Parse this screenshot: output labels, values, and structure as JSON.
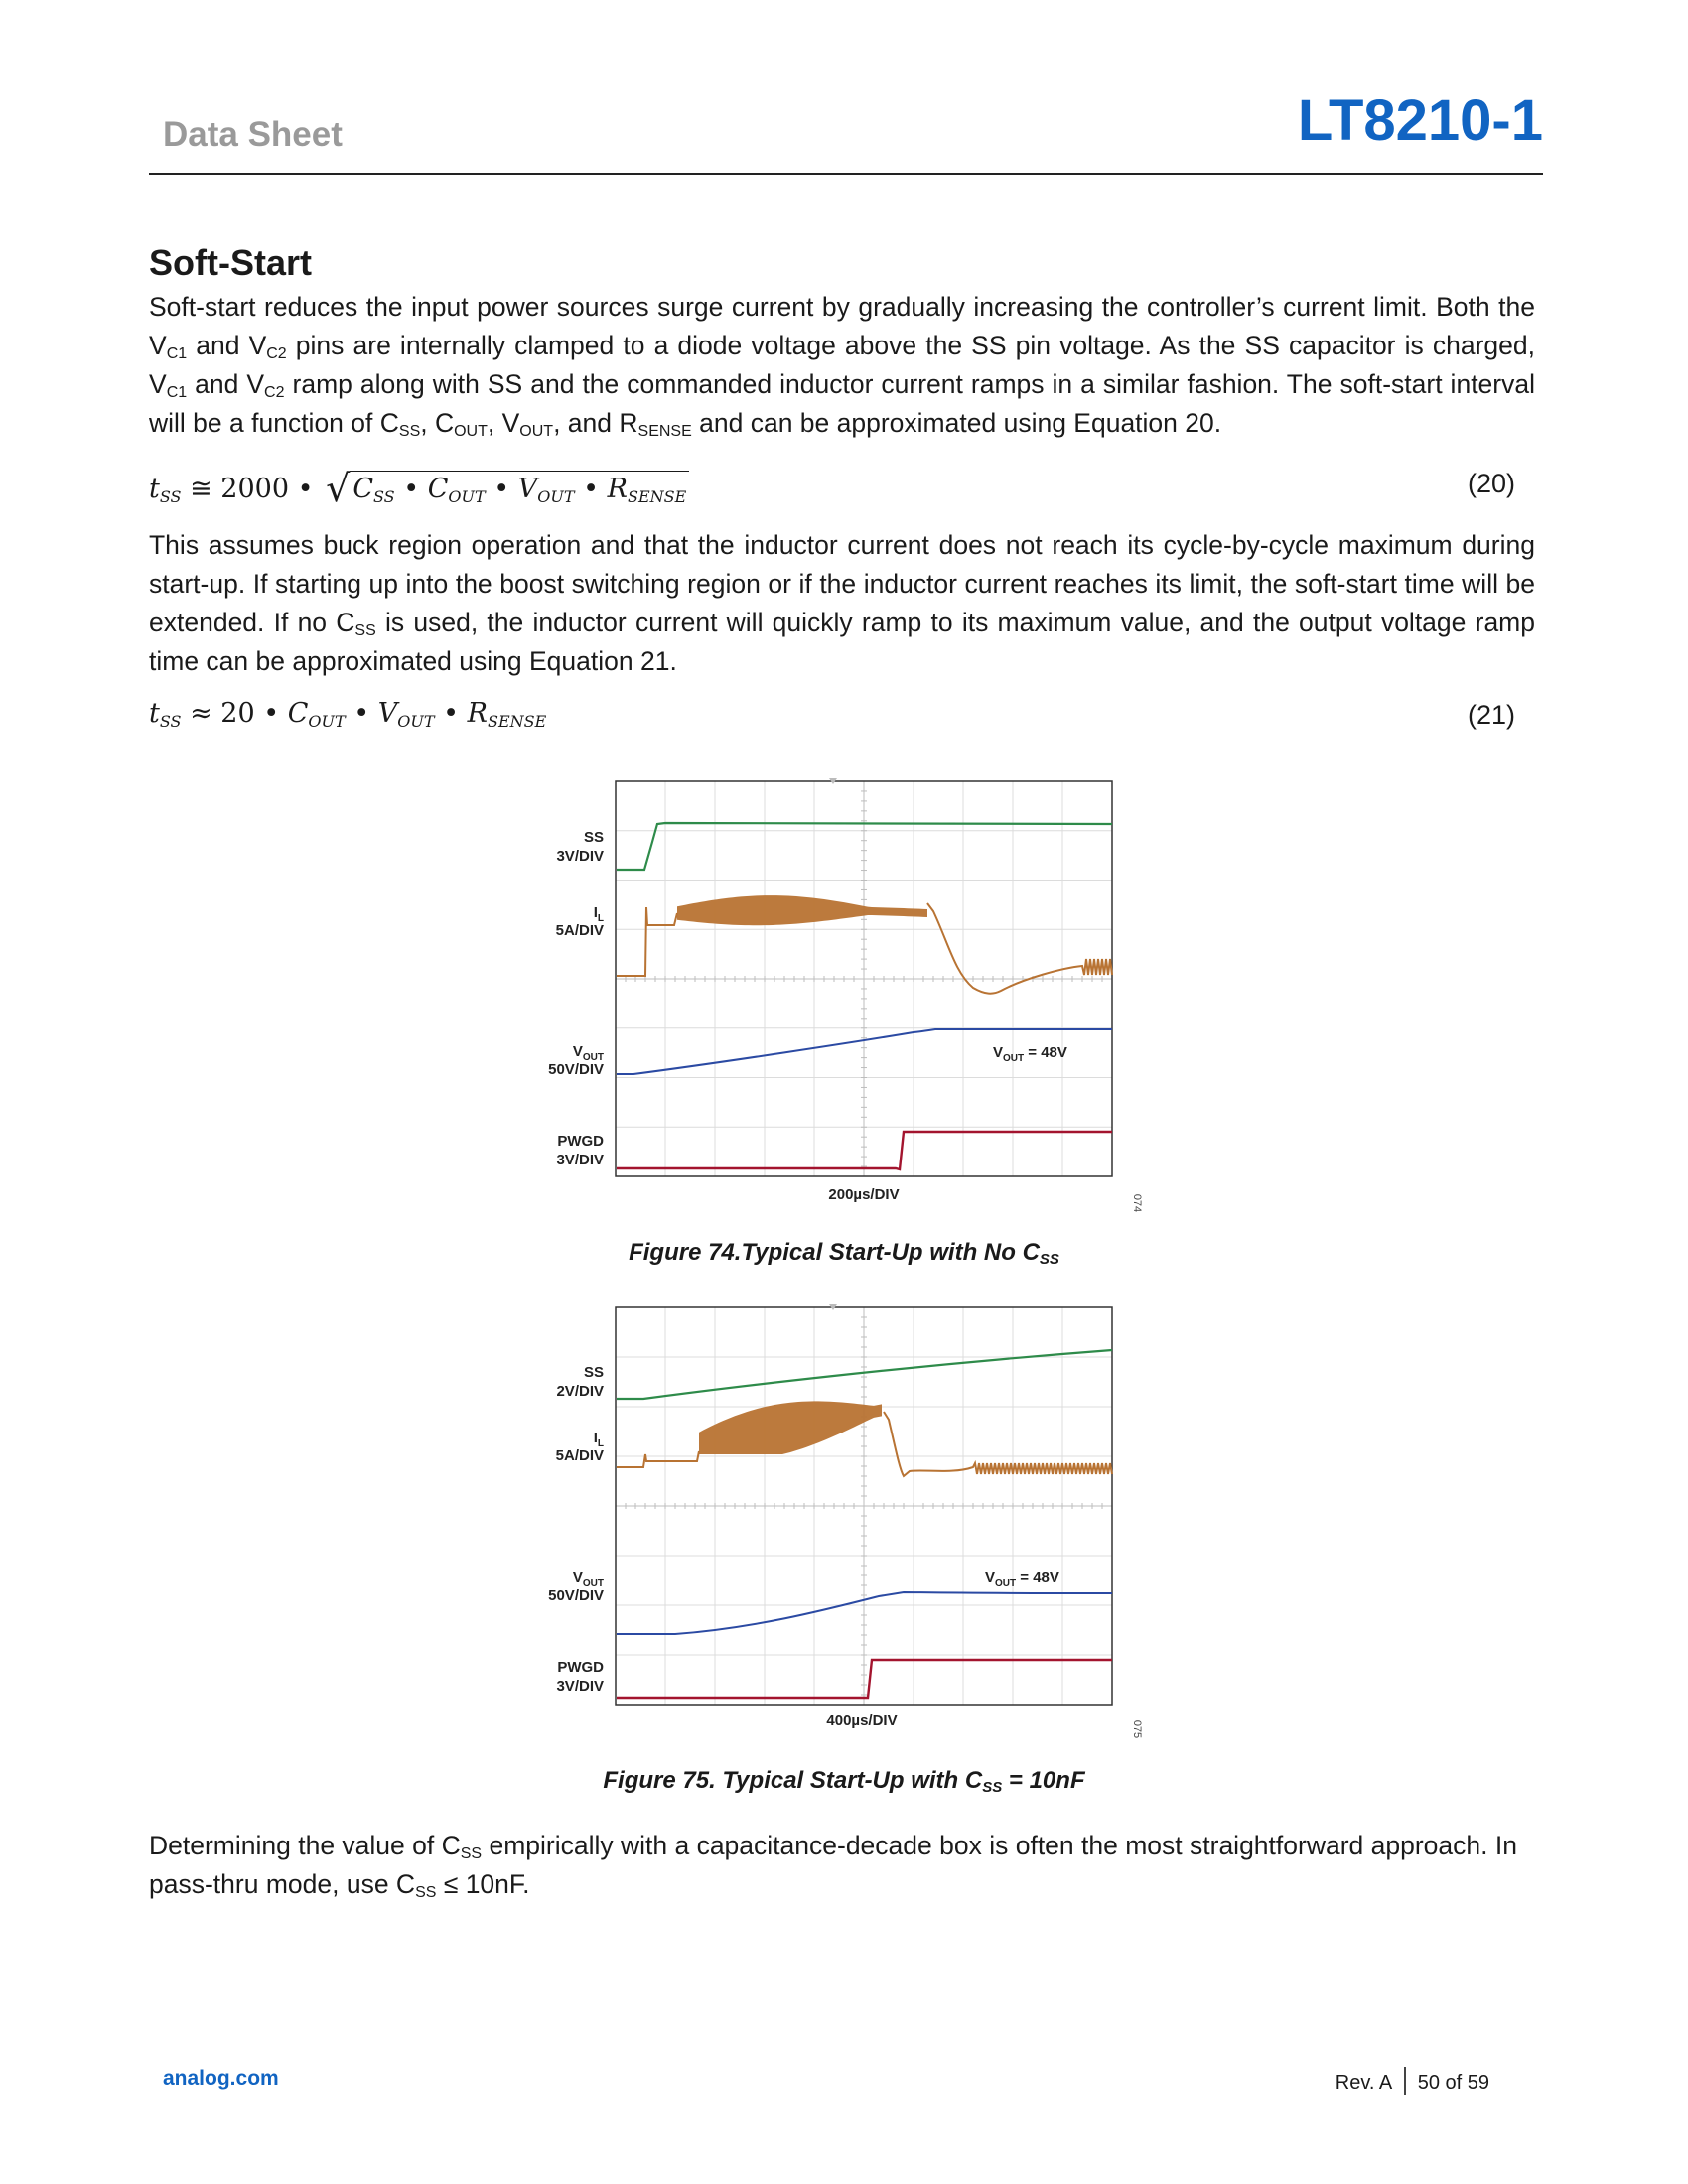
{
  "header": {
    "left": "Data Sheet",
    "right": "LT8210-1"
  },
  "section_title": "Soft-Start",
  "paragraph1": {
    "t1": "Soft-start reduces the input power sources surge current by gradually increasing the controller’s current limit. Both the V",
    "s1": "C1",
    "t2": " and V",
    "s2": "C2",
    "t3": " pins are internally clamped to a diode voltage above the SS pin voltage. As the SS capacitor is charged, V",
    "s3": "C1",
    "t4": " and V",
    "s4": "C2",
    "t5": " ramp along with SS and the commanded inductor current ramps in a similar fashion. The soft-start interval will be a function of C",
    "s5": "SS",
    "t6": ", C",
    "s6": "OUT",
    "t7": ", V",
    "s7": "OUT",
    "t8": ", and R",
    "s8": "SENSE",
    "t9": " and can be approximated using Equation 20."
  },
  "equation20": {
    "lhs": "t",
    "lhs_sub": "SS",
    "op": " ≅ 2000 • ",
    "radical": "√",
    "c1": "C",
    "c1_sub": "SS",
    "dot1": " • ",
    "c2": "C",
    "c2_sub": "OUT",
    "dot2": " • ",
    "c3": "V",
    "c3_sub": "OUT",
    "dot3": " • ",
    "c4": "R",
    "c4_sub": "SENSE",
    "number": "(20)"
  },
  "paragraph2": {
    "t1": "This assumes buck region operation and that the inductor current does not reach its cycle-by-cycle maximum during start-up. If starting up into the boost switching region or if the inductor current reaches its limit, the soft-start time will be extended. If no C",
    "s1": "SS",
    "t2": " is used, the inductor current will quickly ramp to its maximum value, and the output voltage ramp time can be approximated using Equation 21."
  },
  "equation21": {
    "lhs": "t",
    "lhs_sub": "SS",
    "op": " ≈ 20 • ",
    "c1": "C",
    "c1_sub": "OUT",
    "dot1": " • ",
    "c2": "V",
    "c2_sub": "OUT",
    "dot2": " • ",
    "c3": "R",
    "c3_sub": "SENSE",
    "number": "(21)"
  },
  "figure74": {
    "labels": {
      "ss_name": "SS",
      "ss_scale": "3V/DIV",
      "il_name": "I",
      "il_sub": "L",
      "il_scale": "5A/DIV",
      "vout_name": "V",
      "vout_sub": "OUT",
      "vout_scale": "50V/DIV",
      "pwgd_name": "PWGD",
      "pwgd_scale": "3V/DIV",
      "annot_v": "V",
      "annot_sub": "OUT",
      "annot_val": " = 48V",
      "timebase": "200µs/DIV",
      "fig_id": "074"
    },
    "caption_main": "Figure 74.Typical Start-Up with No C",
    "caption_sub": "SS",
    "colors": {
      "ss": "#2e8b4a",
      "il": "#b87333",
      "vout": "#2b4aa3",
      "pwgd": "#a3142e"
    }
  },
  "figure75": {
    "labels": {
      "ss_name": "SS",
      "ss_scale": "2V/DIV",
      "il_name": "I",
      "il_sub": "L",
      "il_scale": "5A/DIV",
      "vout_name": "V",
      "vout_sub": "OUT",
      "vout_scale": "50V/DIV",
      "pwgd_name": "PWGD",
      "pwgd_scale": "3V/DIV",
      "annot_v": "V",
      "annot_sub": "OUT",
      "annot_val": " = 48V",
      "timebase": "400µs/DIV",
      "fig_id": "075"
    },
    "caption_main": "Figure 75. Typical Start-Up with C",
    "caption_sub": "SS",
    "caption_tail": " = 10nF",
    "colors": {
      "ss": "#2e8b4a",
      "il": "#b87333",
      "vout": "#2b4aa3",
      "pwgd": "#a3142e"
    }
  },
  "paragraph3": {
    "t1": "Determining the value of C",
    "s1": "SS",
    "t2": " empirically with a capacitance-decade box is often the most straightforward approach. In pass-thru mode, use C",
    "s2": "SS",
    "t3": " ≤ 10nF."
  },
  "footer": {
    "left": "analog.com",
    "rev": "Rev. A",
    "page": "50 of 59"
  }
}
